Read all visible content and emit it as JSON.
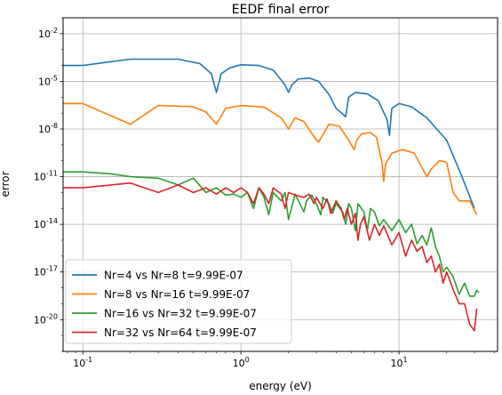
{
  "chart_data": {
    "type": "line",
    "title": "EEDF final error",
    "xlabel": "energy (eV)",
    "ylabel": "error",
    "xscale": "log",
    "yscale": "log",
    "xlim": [
      0.075,
      42
    ],
    "ylim": [
      1e-22,
      0.1
    ],
    "xticks": [
      {
        "value": 0.1,
        "label": "10",
        "exp": "-1"
      },
      {
        "value": 1,
        "label": "10",
        "exp": "0"
      },
      {
        "value": 10,
        "label": "10",
        "exp": "1"
      }
    ],
    "yticks": [
      {
        "value": 1e-20,
        "label": "10",
        "exp": "-20"
      },
      {
        "value": 1e-17,
        "label": "10",
        "exp": "-17"
      },
      {
        "value": 1e-14,
        "label": "10",
        "exp": "-14"
      },
      {
        "value": 1e-11,
        "label": "10",
        "exp": "-11"
      },
      {
        "value": 1e-08,
        "label": "10",
        "exp": "-8"
      },
      {
        "value": 1e-05,
        "label": "10",
        "exp": "-5"
      },
      {
        "value": 0.01,
        "label": "10",
        "exp": "-2"
      }
    ],
    "grid": true,
    "legend_position": "lower-left",
    "series": [
      {
        "name": "Nr=4 vs Nr=8 t=9.99E-07",
        "color": "#1f77b4",
        "points": [
          [
            0.075,
            0.0001
          ],
          [
            0.1,
            0.0001
          ],
          [
            0.2,
            0.00025
          ],
          [
            0.4,
            0.00025
          ],
          [
            0.55,
            0.00013
          ],
          [
            0.65,
            3e-05
          ],
          [
            0.7,
            2e-06
          ],
          [
            0.75,
            3e-05
          ],
          [
            0.85,
            7e-05
          ],
          [
            1.0,
            0.00011
          ],
          [
            1.3,
            0.0001
          ],
          [
            1.6,
            5e-05
          ],
          [
            1.9,
            6e-06
          ],
          [
            2.0,
            2e-06
          ],
          [
            2.1,
            6e-06
          ],
          [
            2.3,
            1.4e-05
          ],
          [
            2.7,
            1.6e-05
          ],
          [
            3.1,
            1e-05
          ],
          [
            3.6,
            1.5e-06
          ],
          [
            4.0,
            2e-07
          ],
          [
            4.6,
            6e-08
          ],
          [
            4.8,
            1e-06
          ],
          [
            5.3,
            2e-06
          ],
          [
            6.3,
            1.6e-06
          ],
          [
            7.4,
            6e-07
          ],
          [
            8.4,
            4e-08
          ],
          [
            8.7,
            4e-09
          ],
          [
            9.0,
            2e-07
          ],
          [
            10.0,
            4e-07
          ],
          [
            12.0,
            2.5e-07
          ],
          [
            15.0,
            5e-08
          ],
          [
            20.0,
            2e-09
          ],
          [
            25.0,
            1e-11
          ],
          [
            30.0,
            1e-13
          ]
        ]
      },
      {
        "name": "Nr=8 vs Nr=16 t=9.99E-07",
        "color": "#ff7f0e",
        "points": [
          [
            0.075,
            4e-07
          ],
          [
            0.1,
            4e-07
          ],
          [
            0.2,
            2e-08
          ],
          [
            0.3,
            3e-07
          ],
          [
            0.5,
            2.5e-07
          ],
          [
            0.6,
            1.2e-07
          ],
          [
            0.7,
            2e-08
          ],
          [
            0.8,
            2e-07
          ],
          [
            1.0,
            3e-07
          ],
          [
            1.4,
            2.4e-07
          ],
          [
            1.8,
            5e-08
          ],
          [
            2.0,
            1e-08
          ],
          [
            2.2,
            5e-08
          ],
          [
            2.5,
            3e-08
          ],
          [
            3.0,
            2e-09
          ],
          [
            3.1,
            1.5e-09
          ],
          [
            3.6,
            2e-08
          ],
          [
            4.2,
            1.5e-08
          ],
          [
            4.8,
            2e-09
          ],
          [
            5.2,
            5e-10
          ],
          [
            5.4,
            2e-09
          ],
          [
            5.8,
            5e-09
          ],
          [
            6.6,
            6e-09
          ],
          [
            7.2,
            3e-09
          ],
          [
            7.8,
            8e-11
          ],
          [
            8.0,
            5e-12
          ],
          [
            8.2,
            6e-11
          ],
          [
            9.0,
            3e-10
          ],
          [
            10.5,
            5e-10
          ],
          [
            12.5,
            3e-10
          ],
          [
            15.0,
            1e-11
          ],
          [
            16.0,
            3e-11
          ],
          [
            18.0,
            1e-10
          ],
          [
            20.0,
            8e-11
          ],
          [
            22.0,
            1e-12
          ],
          [
            24.0,
            3e-13
          ],
          [
            28.0,
            3e-13
          ],
          [
            31.0,
            4e-14
          ]
        ]
      },
      {
        "name": "Nr=16 vs Nr=32 t=9.99E-07",
        "color": "#2ca02c",
        "points": [
          [
            0.075,
            2e-11
          ],
          [
            0.1,
            2e-11
          ],
          [
            0.15,
            1.5e-11
          ],
          [
            0.2,
            1e-11
          ],
          [
            0.3,
            8e-12
          ],
          [
            0.4,
            3e-12
          ],
          [
            0.5,
            8e-12
          ],
          [
            0.6,
            1e-12
          ],
          [
            0.7,
            2e-12
          ],
          [
            0.8,
            7e-13
          ],
          [
            0.9,
            8e-13
          ],
          [
            1.0,
            5e-13
          ],
          [
            1.1,
            1e-12
          ],
          [
            1.2,
            1e-13
          ],
          [
            1.3,
            2e-12
          ],
          [
            1.4,
            5e-13
          ],
          [
            1.5,
            4e-14
          ],
          [
            1.6,
            1e-12
          ],
          [
            1.8,
            3e-13
          ],
          [
            1.9,
            1e-12
          ],
          [
            2.0,
            2e-14
          ],
          [
            2.2,
            8e-13
          ],
          [
            2.5,
            6e-14
          ],
          [
            2.6,
            3e-13
          ],
          [
            2.8,
            7e-13
          ],
          [
            3.0,
            2e-13
          ],
          [
            3.2,
            4e-14
          ],
          [
            3.3,
            5e-13
          ],
          [
            3.6,
            2e-13
          ],
          [
            3.8,
            5e-14
          ],
          [
            4.0,
            2e-13
          ],
          [
            4.4,
            6e-14
          ],
          [
            4.6,
            1e-14
          ],
          [
            4.8,
            2e-13
          ],
          [
            5.0,
            1e-13
          ],
          [
            5.3,
            4e-15
          ],
          [
            5.5,
            2e-13
          ],
          [
            6.0,
            6e-14
          ],
          [
            6.3,
            4e-15
          ],
          [
            6.6,
            1e-13
          ],
          [
            7.0,
            6e-14
          ],
          [
            7.5,
            8e-15
          ],
          [
            8.0,
            2e-14
          ],
          [
            9.0,
            4e-15
          ],
          [
            10.0,
            2e-14
          ],
          [
            11.0,
            3e-15
          ],
          [
            12.0,
            1e-14
          ],
          [
            13.0,
            6e-16
          ],
          [
            14.0,
            2e-15
          ],
          [
            15.0,
            5e-16
          ],
          [
            16.0,
            6e-15
          ],
          [
            17.0,
            4e-16
          ],
          [
            18.0,
            1e-16
          ],
          [
            19.0,
            1e-17
          ],
          [
            20.0,
            2e-17
          ],
          [
            22.0,
            5e-18
          ],
          [
            24.0,
            4e-19
          ],
          [
            26.0,
            2e-18
          ],
          [
            28.0,
            3e-19
          ],
          [
            30.0,
            3e-19
          ],
          [
            31.0,
            7e-19
          ],
          [
            32.0,
            5e-19
          ]
        ]
      },
      {
        "name": "Nr=32 vs Nr=64 t=9.99E-07",
        "color": "#d62728",
        "points": [
          [
            0.075,
            2e-12
          ],
          [
            0.1,
            2e-12
          ],
          [
            0.15,
            3e-12
          ],
          [
            0.2,
            4e-12
          ],
          [
            0.3,
            1e-12
          ],
          [
            0.4,
            3e-12
          ],
          [
            0.5,
            1e-12
          ],
          [
            0.6,
            2e-12
          ],
          [
            0.7,
            8e-13
          ],
          [
            0.8,
            2e-12
          ],
          [
            0.9,
            1e-12
          ],
          [
            1.0,
            2e-12
          ],
          [
            1.1,
            1e-12
          ],
          [
            1.2,
            2e-13
          ],
          [
            1.3,
            2e-12
          ],
          [
            1.4,
            8e-13
          ],
          [
            1.5,
            2e-13
          ],
          [
            1.6,
            2e-12
          ],
          [
            1.8,
            8e-13
          ],
          [
            1.9,
            1e-13
          ],
          [
            2.0,
            1e-12
          ],
          [
            2.2,
            7e-13
          ],
          [
            2.5,
            5e-13
          ],
          [
            2.7,
            8e-13
          ],
          [
            2.9,
            2e-13
          ],
          [
            3.0,
            5e-13
          ],
          [
            3.3,
            1e-13
          ],
          [
            3.5,
            4e-13
          ],
          [
            3.7,
            5e-14
          ],
          [
            4.0,
            3e-13
          ],
          [
            4.3,
            1e-13
          ],
          [
            4.5,
            2e-14
          ],
          [
            4.7,
            1e-13
          ],
          [
            5.0,
            1e-14
          ],
          [
            5.3,
            5e-14
          ],
          [
            5.5,
            1e-15
          ],
          [
            5.7,
            1e-14
          ],
          [
            6.0,
            3e-14
          ],
          [
            6.5,
            1e-15
          ],
          [
            7.0,
            1e-14
          ],
          [
            7.5,
            2e-15
          ],
          [
            8.0,
            8e-15
          ],
          [
            9.0,
            5e-16
          ],
          [
            10.0,
            3e-15
          ],
          [
            11.0,
            1e-16
          ],
          [
            12.0,
            1e-15
          ],
          [
            13.0,
            2e-16
          ],
          [
            14.0,
            4e-16
          ],
          [
            15.0,
            4e-17
          ],
          [
            16.0,
            1e-16
          ],
          [
            17.0,
            1e-17
          ],
          [
            18.0,
            3e-17
          ],
          [
            19.0,
            2e-18
          ],
          [
            20.0,
            1e-17
          ],
          [
            22.0,
            8e-19
          ],
          [
            24.0,
            1e-19
          ],
          [
            26.0,
            1e-19
          ],
          [
            28.0,
            5e-21
          ],
          [
            30.0,
            2e-21
          ],
          [
            31.0,
            5e-20
          ]
        ]
      }
    ]
  }
}
